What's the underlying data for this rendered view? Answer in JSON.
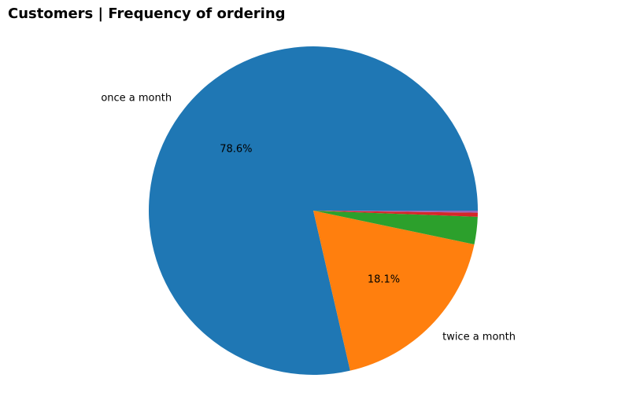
{
  "chart_data": {
    "type": "pie",
    "title": "Customers | Frequency of ordering",
    "slices": [
      {
        "label": "once a month",
        "value": 78.6,
        "pct_label": "78.6%",
        "color": "#1f77b4",
        "show_label": true
      },
      {
        "label": "twice a month",
        "value": 18.1,
        "pct_label": "18.1%",
        "color": "#ff7f0e",
        "show_label": true
      },
      {
        "label": "",
        "value": 2.7,
        "pct_label": "",
        "color": "#2ca02c",
        "show_label": false
      },
      {
        "label": "",
        "value": 0.4,
        "pct_label": "",
        "color": "#d62728",
        "show_label": false
      },
      {
        "label": "",
        "value": 0.2,
        "pct_label": "",
        "color": "#9467bd",
        "show_label": false
      }
    ],
    "start_angle_deg": 0,
    "direction": "counterclockwise"
  }
}
